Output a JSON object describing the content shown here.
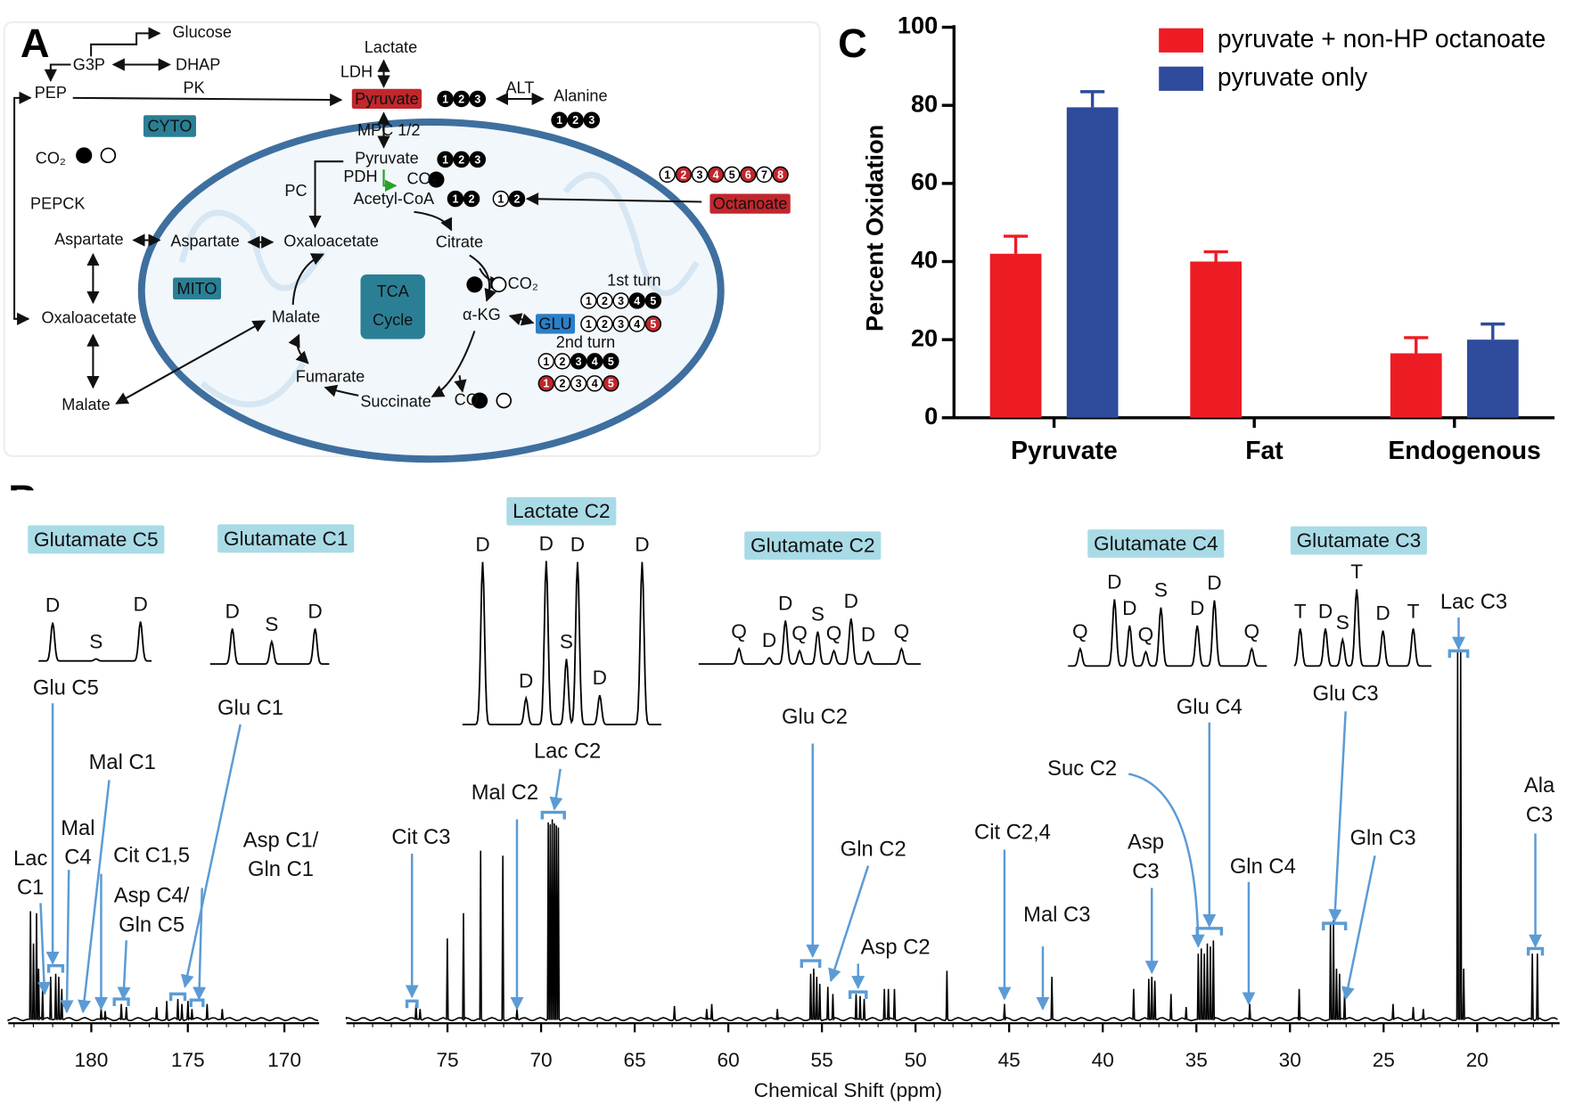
{
  "panel_labels": {
    "a": "A",
    "b": "B",
    "c": "C"
  },
  "diagram": {
    "labels": [
      "Glucose",
      "G3P",
      "DHAP",
      "Lactate",
      "LDH",
      "PEP",
      "PK",
      "Pyruvate",
      "ALT",
      "Alanine",
      "CYTO",
      "MPC 1/2",
      "CO₂",
      "Pyruvate",
      "PDH",
      "CO₂",
      "PC",
      "PEPCK",
      "Acetyl-CoA",
      "Octanoate",
      "Aspartate",
      "Aspartate",
      "Oxaloacetate",
      "Citrate",
      "CO₂",
      "1st turn",
      "MITO",
      "TCA",
      "Cycle",
      "Malate",
      "Oxaloacetate",
      "α-KG",
      "GLU",
      "2nd turn",
      "Fumarate",
      "Malate",
      "Succinate",
      "CO₂"
    ],
    "carbon_rows": [
      {
        "digits": [
          "1",
          "2",
          "3"
        ],
        "fills": [
          "#000",
          "#000",
          "#000"
        ]
      },
      {
        "digits": [
          "1",
          "2",
          "3"
        ],
        "fills": [
          "#000",
          "#000",
          "#000"
        ]
      },
      {
        "digits": [
          "1",
          "2",
          "3"
        ],
        "fills": [
          "#000",
          "#000",
          "#000"
        ]
      },
      {
        "digits": [
          "1",
          "2"
        ],
        "fills": [
          "#000",
          "#000"
        ]
      },
      {
        "digits": [
          "1",
          "2"
        ],
        "fills": [
          "#fff",
          "#000"
        ]
      },
      {
        "digits": [
          "1",
          "2",
          "3",
          "4",
          "5",
          "6",
          "7",
          "8"
        ],
        "fills": [
          "#fff",
          "#c1272d",
          "#fff",
          "#c1272d",
          "#fff",
          "#c1272d",
          "#fff",
          "#c1272d"
        ]
      },
      {
        "digits": [
          "1",
          "2",
          "3",
          "4",
          "5"
        ],
        "fills": [
          "#fff",
          "#fff",
          "#fff",
          "#000",
          "#000"
        ]
      },
      {
        "digits": [
          "1",
          "2",
          "3",
          "4",
          "5"
        ],
        "fills": [
          "#fff",
          "#fff",
          "#fff",
          "#fff",
          "#c1272d"
        ]
      },
      {
        "digits": [
          "1",
          "2",
          "3",
          "4",
          "5"
        ],
        "fills": [
          "#fff",
          "#fff",
          "#000",
          "#000",
          "#000"
        ]
      },
      {
        "digits": [
          "1",
          "2",
          "3",
          "4",
          "5"
        ],
        "fills": [
          "#c1272d",
          "#fff",
          "#fff",
          "#fff",
          "#c1272d"
        ]
      }
    ]
  },
  "chart_data": {
    "type": "bar",
    "ylabel": "Percent Oxidation",
    "categories": [
      "Pyruvate",
      "Fat",
      "Endogenous"
    ],
    "series": [
      {
        "name": "pyruvate + non-HP octanoate",
        "color": "#ed1c24",
        "values": [
          42,
          40,
          16.5
        ],
        "errors": [
          4.5,
          2.5,
          4
        ]
      },
      {
        "name": "pyruvate only",
        "color": "#2e4b9c",
        "values": [
          79.5,
          null,
          20
        ],
        "errors": [
          4,
          null,
          4
        ]
      }
    ],
    "ylim": [
      0,
      100
    ],
    "yticks": [
      0,
      20,
      40,
      60,
      80,
      100
    ],
    "legend": "top-right"
  },
  "spectrum": {
    "xlabel": "Chemical Shift (ppm)",
    "left_axis": {
      "xlim": [
        184.3,
        168.2
      ],
      "xticks": [
        180,
        175,
        170
      ]
    },
    "right_axis": {
      "xlim": [
        80.4,
        15.6
      ],
      "xticks": [
        75,
        70,
        65,
        60,
        55,
        50,
        45,
        40,
        35,
        30,
        25,
        20
      ]
    },
    "insets": [
      {
        "title": "Glutamate C5",
        "letters": [
          "D",
          "S",
          "D"
        ]
      },
      {
        "title": "Glutamate C1",
        "letters": [
          "D",
          "S",
          "D"
        ]
      },
      {
        "title": "Lactate  C2",
        "letters": [
          "D",
          "D",
          "D",
          "D",
          "D",
          "S",
          "D"
        ]
      },
      {
        "title": "Glutamate C2",
        "letters": [
          "Q",
          "D",
          "D",
          "Q",
          "S",
          "Q",
          "D",
          "D",
          "Q"
        ]
      },
      {
        "title": "Glutamate C4",
        "letters": [
          "Q",
          "D",
          "D",
          "S",
          "Q",
          "D",
          "D",
          "Q"
        ]
      },
      {
        "title": "Glutamate C3",
        "letters": [
          "T",
          "D",
          "S",
          "T",
          "D",
          "T"
        ]
      }
    ],
    "peak_labels": [
      [
        "Glu C5"
      ],
      [
        "Glu C1"
      ],
      [
        "Mal C1"
      ],
      [
        "Mal",
        "C4"
      ],
      [
        "Lac",
        "C1"
      ],
      [
        "Cit C1,5"
      ],
      [
        "Asp C4/",
        "Gln C5"
      ],
      [
        "Asp C1/",
        "Gln C1"
      ],
      [
        "Lac C2"
      ],
      [
        "Mal C2"
      ],
      [
        "Cit C3"
      ],
      [
        "Glu C2"
      ],
      [
        "Gln C2"
      ],
      [
        "Asp C2"
      ],
      [
        "Cit C2,4"
      ],
      [
        "Mal C3"
      ],
      [
        "Asp",
        "C3"
      ],
      [
        "Suc C2"
      ],
      [
        "Glu C4"
      ],
      [
        "Gln C4"
      ],
      [
        "Glu C3"
      ],
      [
        "Gln C3"
      ],
      [
        "Lac C3"
      ],
      [
        "Ala",
        "C3"
      ]
    ]
  }
}
